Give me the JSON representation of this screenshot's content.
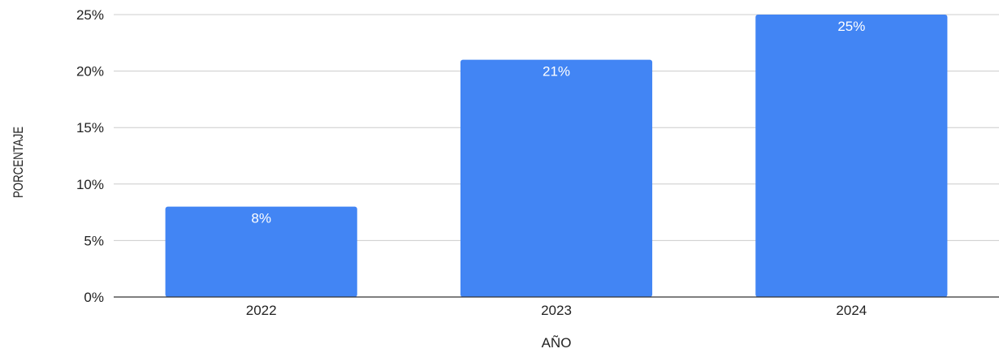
{
  "chart_data": {
    "type": "bar",
    "categories": [
      "2022",
      "2023",
      "2024"
    ],
    "series": [
      {
        "values": [
          8,
          21,
          25
        ],
        "data_labels": [
          "8%",
          "21%",
          "25%"
        ],
        "color": "#4285f4"
      }
    ],
    "xlabel": "AÑO",
    "ylabel": "PORCENTAJE",
    "ylim": [
      0,
      25
    ],
    "yticks": [
      0,
      5,
      10,
      15,
      20,
      25
    ],
    "ytick_labels": [
      "0%",
      "5%",
      "10%",
      "15%",
      "20%",
      "25%"
    ],
    "grid": true,
    "legend": "none"
  },
  "colors": {
    "bar": "#4285f4",
    "grid": "#cccccc",
    "axis": "#333333",
    "text": "#222222",
    "data_label": "#ffffff"
  }
}
